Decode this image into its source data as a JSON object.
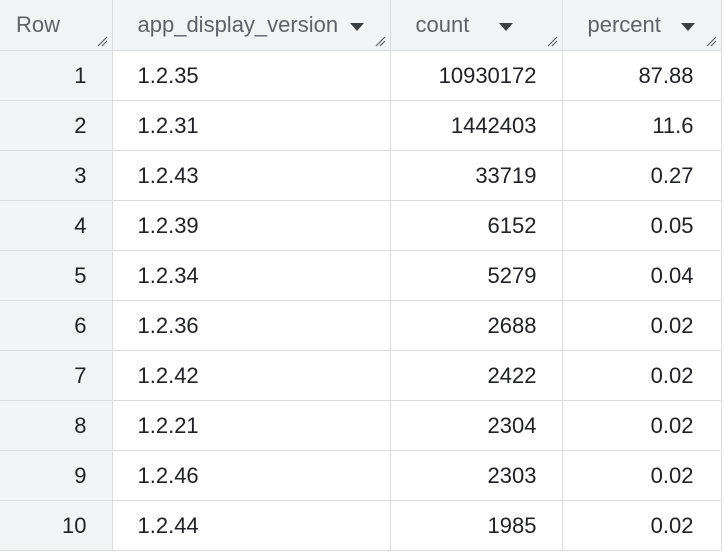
{
  "table": {
    "headers": {
      "row": "Row",
      "app_display_version": "app_display_version",
      "count": "count",
      "percent": "percent"
    },
    "rows": [
      {
        "row": "1",
        "app_display_version": "1.2.35",
        "count": "10930172",
        "percent": "87.88"
      },
      {
        "row": "2",
        "app_display_version": "1.2.31",
        "count": "1442403",
        "percent": "11.6"
      },
      {
        "row": "3",
        "app_display_version": "1.2.43",
        "count": "33719",
        "percent": "0.27"
      },
      {
        "row": "4",
        "app_display_version": "1.2.39",
        "count": "6152",
        "percent": "0.05"
      },
      {
        "row": "5",
        "app_display_version": "1.2.34",
        "count": "5279",
        "percent": "0.04"
      },
      {
        "row": "6",
        "app_display_version": "1.2.36",
        "count": "2688",
        "percent": "0.02"
      },
      {
        "row": "7",
        "app_display_version": "1.2.42",
        "count": "2422",
        "percent": "0.02"
      },
      {
        "row": "8",
        "app_display_version": "1.2.21",
        "count": "2304",
        "percent": "0.02"
      },
      {
        "row": "9",
        "app_display_version": "1.2.46",
        "count": "2303",
        "percent": "0.02"
      },
      {
        "row": "10",
        "app_display_version": "1.2.44",
        "count": "1985",
        "percent": "0.02"
      }
    ]
  },
  "icons": {
    "sort": "sort-arrow-down-icon",
    "resize": "column-resize-icon"
  },
  "colors": {
    "header_bg": "#f1f3f4",
    "border": "#dadce0",
    "header_text": "#5f6368",
    "text": "#202124"
  }
}
